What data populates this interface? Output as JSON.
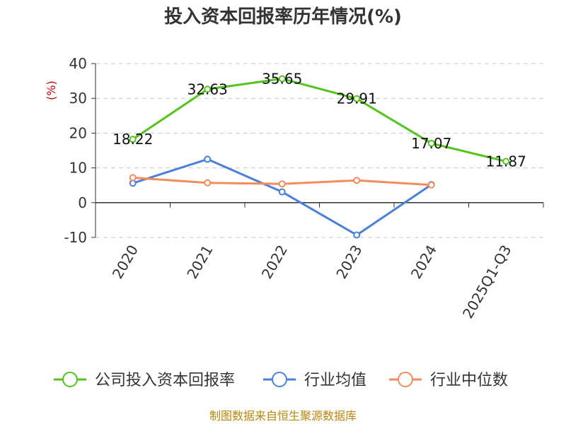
{
  "chart_data": {
    "type": "line",
    "title": "投入资本回报率历年情况(%)",
    "ylabel": "(%)",
    "categories": [
      "2020",
      "2021",
      "2022",
      "2023",
      "2024",
      "2025Q1-Q3"
    ],
    "ylim": [
      -10,
      40
    ],
    "yticks": [
      40,
      30,
      20,
      10,
      0,
      -10
    ],
    "grid": true,
    "legend_position": "bottom",
    "series": [
      {
        "name": "公司投入资本回报率",
        "color": "#52c41a",
        "values": [
          18.22,
          32.63,
          35.65,
          29.91,
          17.07,
          11.87
        ],
        "labels": [
          "18.22",
          "32.63",
          "35.65",
          "29.91",
          "17.07",
          "11.87"
        ]
      },
      {
        "name": "行业均值",
        "color": "#4a7fdc",
        "values": [
          5.6,
          12.5,
          3.1,
          -9.3,
          5.2,
          null
        ]
      },
      {
        "name": "行业中位数",
        "color": "#f58a5a",
        "values": [
          7.2,
          5.7,
          5.4,
          6.4,
          5.1,
          null
        ]
      }
    ]
  },
  "source": "制图数据来自恒生聚源数据库"
}
